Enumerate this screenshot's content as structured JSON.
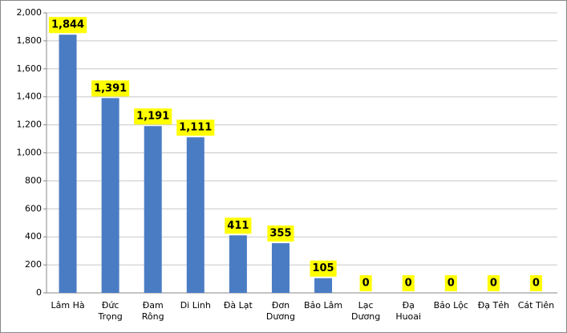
{
  "chart_data": {
    "type": "bar",
    "categories": [
      "Lâm Hà",
      "Đức Trọng",
      "Đam Rông",
      "Di Linh",
      "Đà Lạt",
      "Đơn Dương",
      "Bảo Lâm",
      "Lạc Dương",
      "Đạ Huoai",
      "Bảo Lộc",
      "Đạ Tẻh",
      "Cát Tiên"
    ],
    "values": [
      1844,
      1391,
      1191,
      1111,
      411,
      355,
      105,
      0,
      0,
      0,
      0,
      0
    ],
    "value_labels": [
      "1,844",
      "1,391",
      "1,191",
      "1,111",
      "411",
      "355",
      "105",
      "0",
      "0",
      "0",
      "0",
      "0"
    ],
    "color": "#4a7cc4",
    "ylim": [
      0,
      2000
    ],
    "yticks": [
      0,
      200,
      400,
      600,
      800,
      {
        "value": 1000,
        "label": "1,000"
      },
      {
        "value": 1200,
        "label": "1,200"
      },
      {
        "value": 1400,
        "label": "1,400"
      },
      {
        "value": 1600,
        "label": "1,600"
      },
      {
        "value": 1800,
        "label": "1,800"
      },
      {
        "value": 2000,
        "label": "2,000"
      }
    ],
    "grid": true
  }
}
